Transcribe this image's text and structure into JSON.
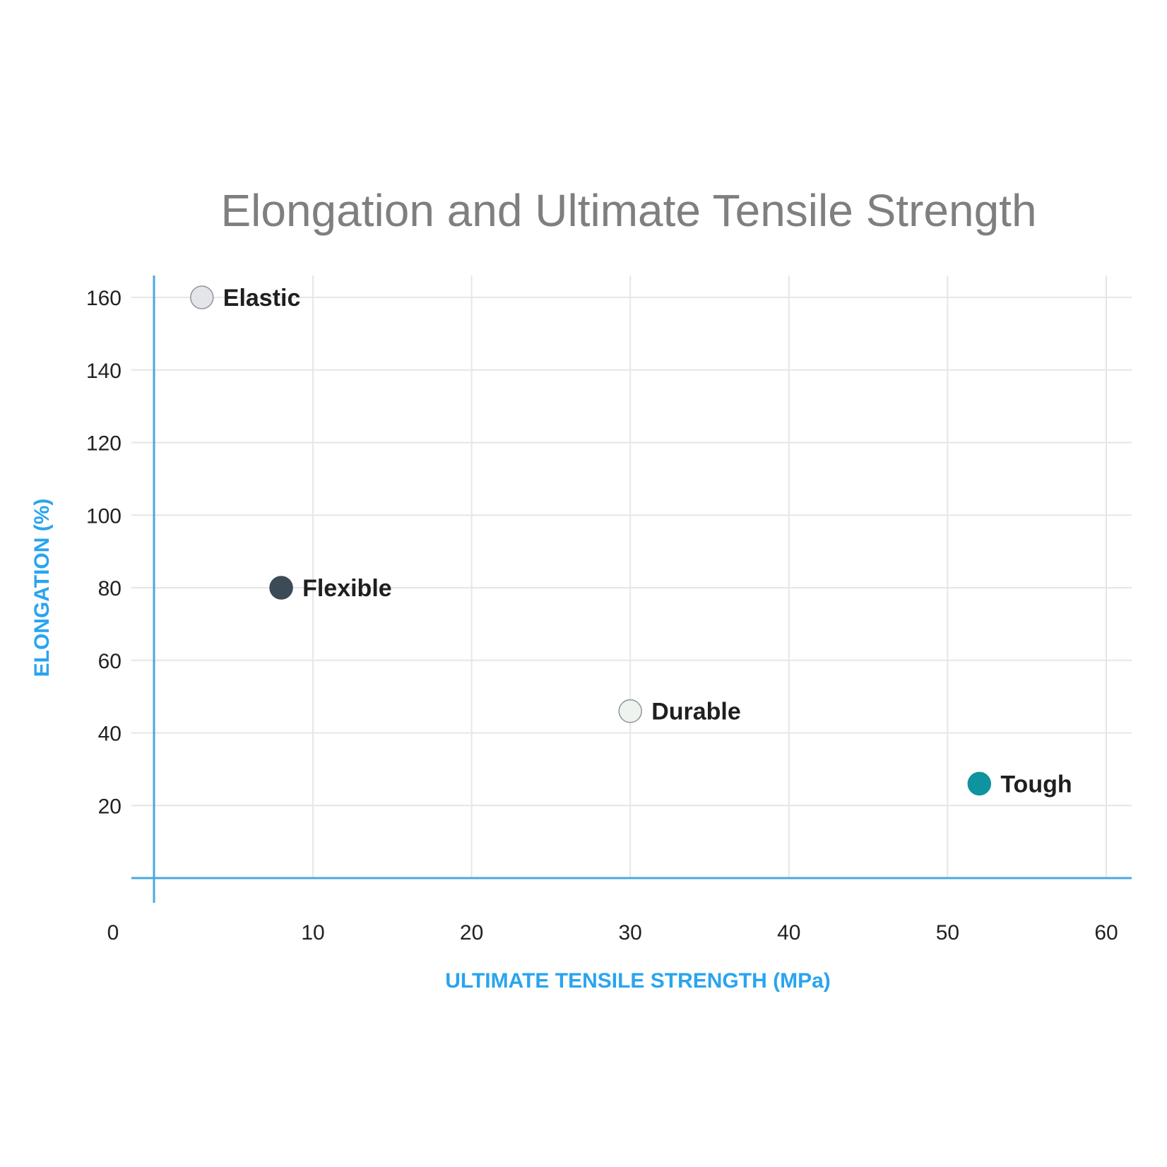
{
  "chart_data": {
    "type": "scatter",
    "title": "Elongation and Ultimate Tensile Strength",
    "xlabel": "ULTIMATE TENSILE STRENGTH (MPa)",
    "ylabel": "ELONGATION (%)",
    "xlim": [
      0,
      60
    ],
    "ylim": [
      0,
      160
    ],
    "x_ticks": [
      "0",
      "10",
      "20",
      "30",
      "40",
      "50",
      "60"
    ],
    "y_ticks": [
      "20",
      "40",
      "60",
      "80",
      "100",
      "120",
      "140",
      "160"
    ],
    "grid": true,
    "points": [
      {
        "label": "Elastic",
        "x": 3,
        "y": 160,
        "color": "#e3e5e8",
        "stroke": "#8f969c"
      },
      {
        "label": "Flexible",
        "x": 8,
        "y": 80,
        "color": "#3d4a57",
        "stroke": "#3d4a57"
      },
      {
        "label": "Durable",
        "x": 30,
        "y": 46,
        "color": "#eef3ef",
        "stroke": "#8f969c"
      },
      {
        "label": "Tough",
        "x": 52,
        "y": 26,
        "color": "#0e94a0",
        "stroke": "#0e94a0"
      }
    ],
    "colors": {
      "axis": "#4aa8e0",
      "axis_label": "#2aa4ee",
      "title": "#7f7f7f"
    }
  }
}
